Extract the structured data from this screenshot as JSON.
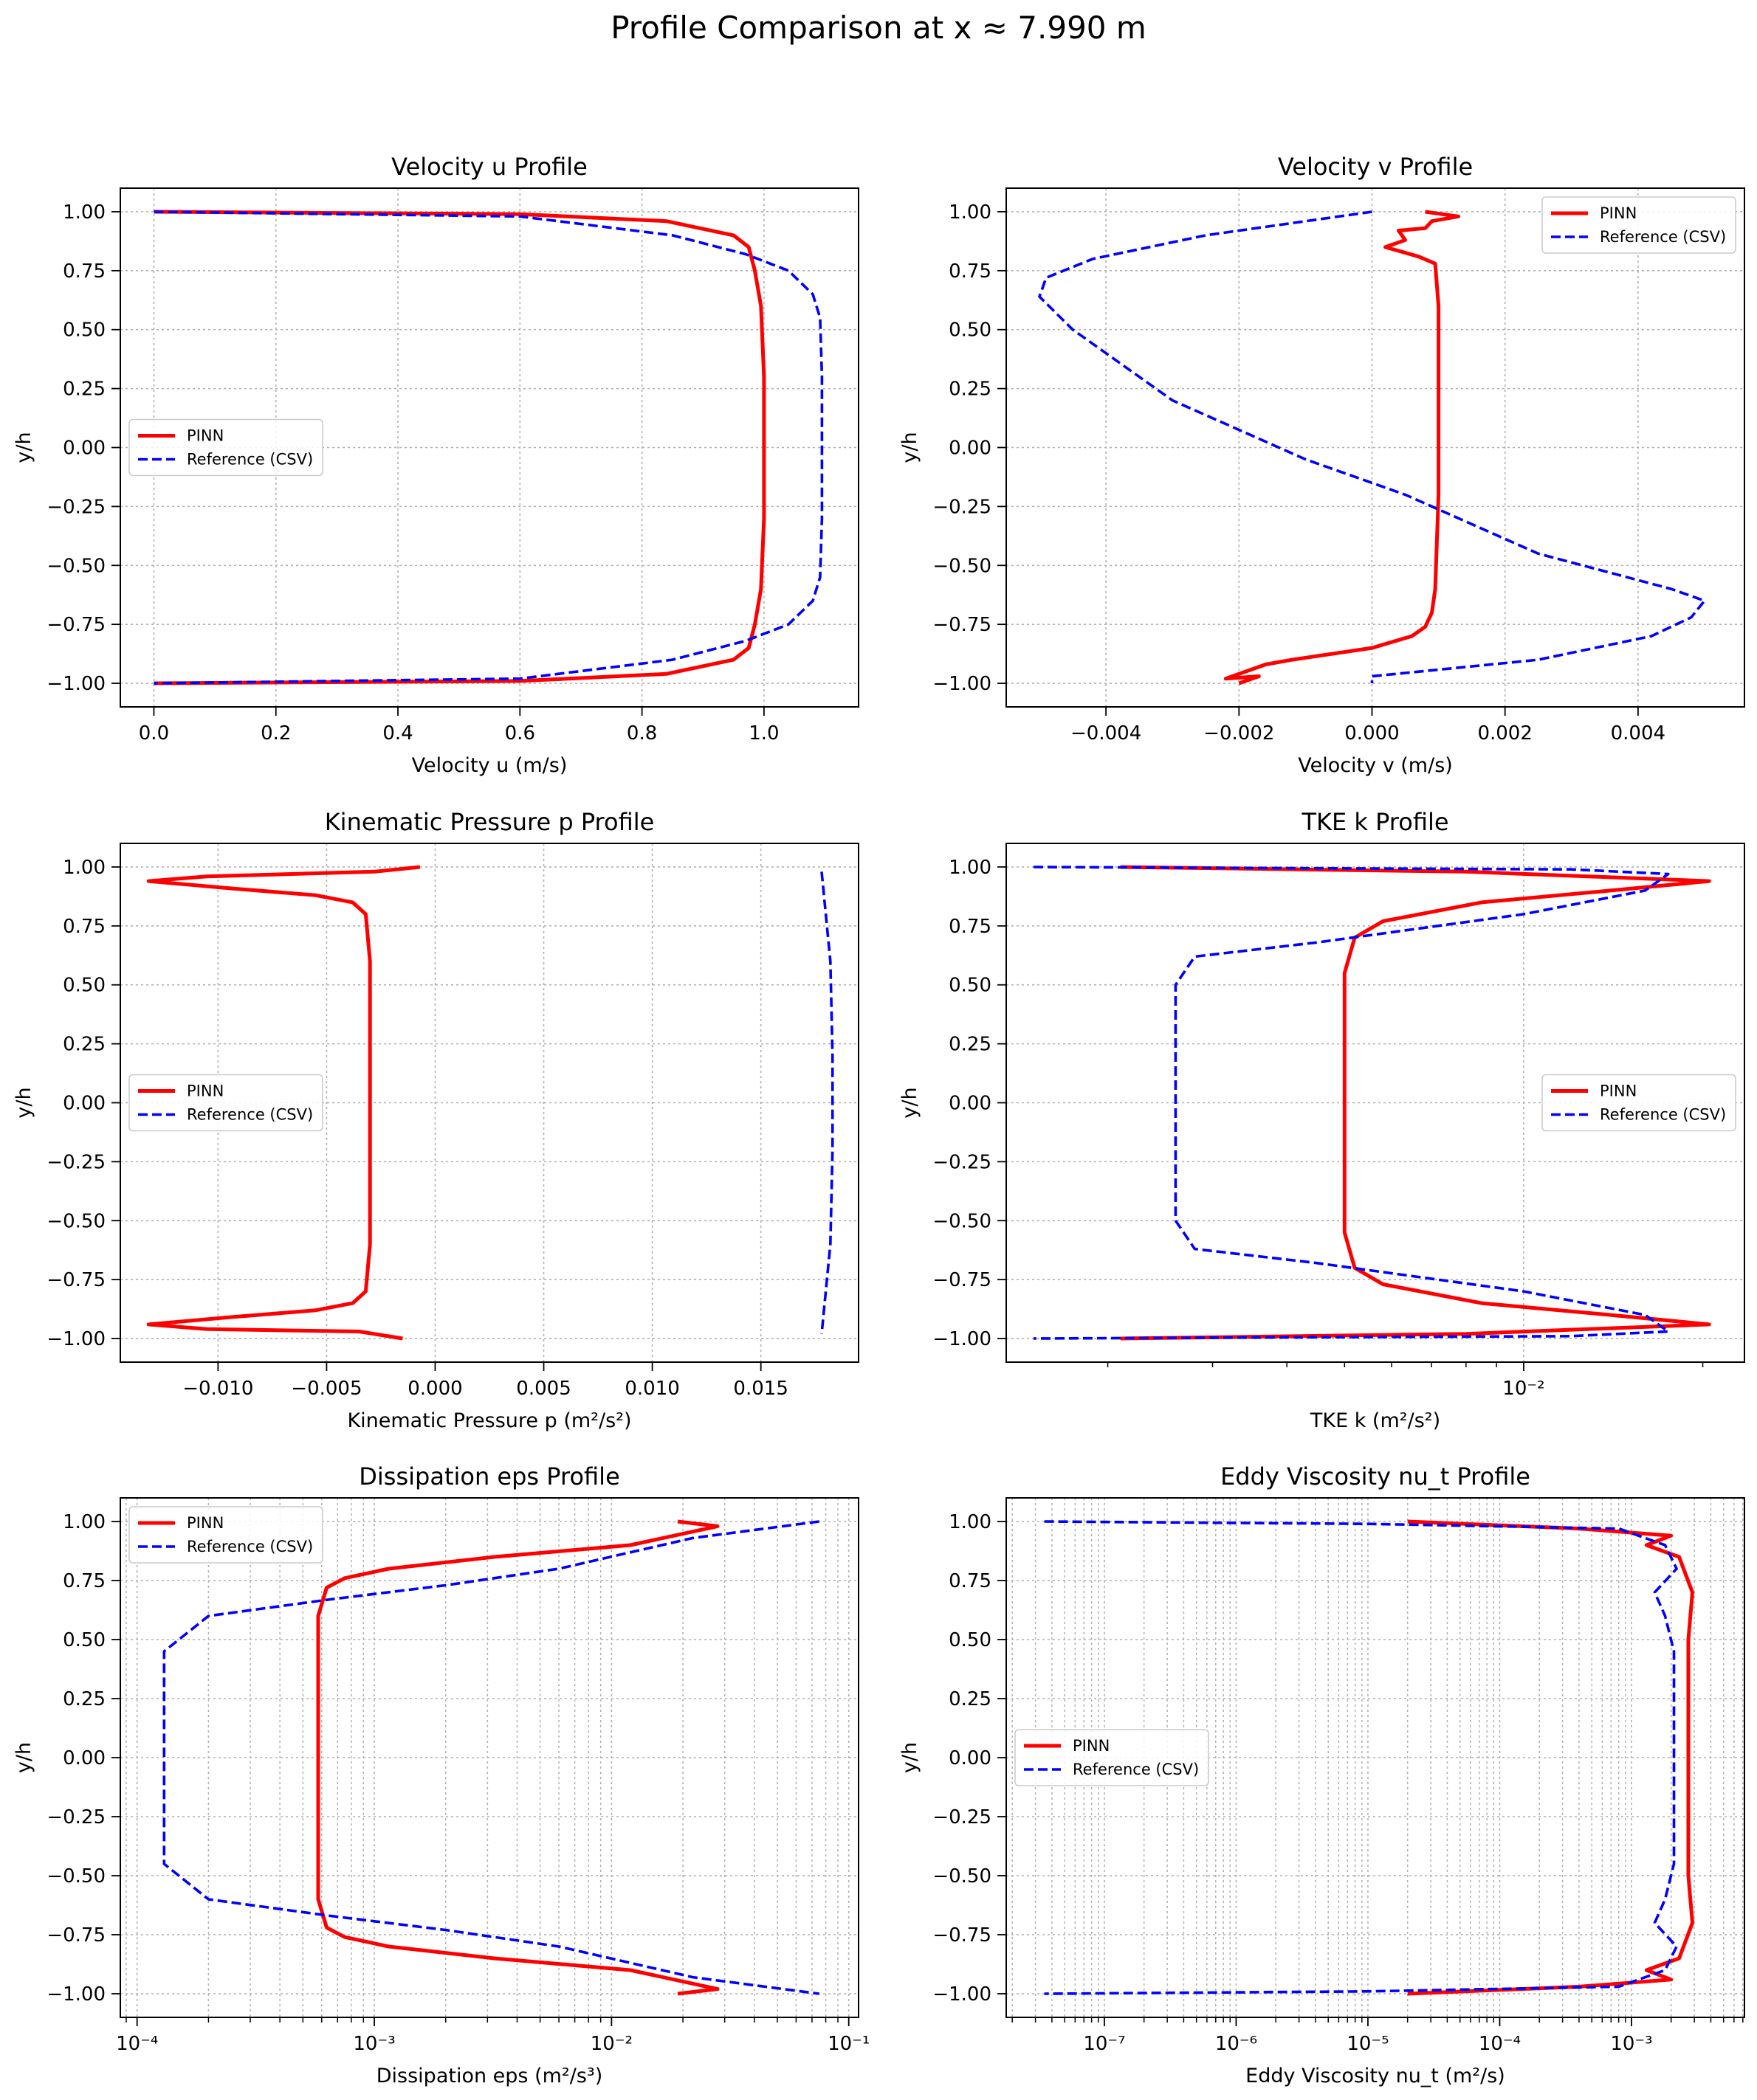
{
  "figure": {
    "suptitle": "Profile Comparison at x ≈ 7.990 m"
  },
  "legend_labels": [
    "PINN",
    "Reference (CSV)"
  ],
  "colors": {
    "pinn": "#ff0000",
    "reference": "#0000ff",
    "grid": "#b0b0b0"
  },
  "chart_data": [
    {
      "id": "u",
      "type": "line",
      "title": "Velocity u Profile",
      "xlabel": "Velocity u (m/s)",
      "ylabel": "y/h",
      "xscale": "linear",
      "xlim": [
        -0.055,
        1.155
      ],
      "ylim": [
        -1.1,
        1.1
      ],
      "xticks": [
        0.0,
        0.2,
        0.4,
        0.6,
        0.8,
        1.0
      ],
      "xticklabels": [
        "0.0",
        "0.2",
        "0.4",
        "0.6",
        "0.8",
        "1.0"
      ],
      "legend_loc": "center-left",
      "grid": true,
      "series": [
        {
          "name": "PINN",
          "style": "solid",
          "x": [
            0.0,
            0.6,
            0.84,
            0.95,
            0.975,
            0.985,
            0.995,
            1.0,
            1.0,
            0.995,
            0.985,
            0.975,
            0.95,
            0.84,
            0.6,
            0.0
          ],
          "y": [
            1.0,
            0.99,
            0.96,
            0.9,
            0.85,
            0.75,
            0.6,
            0.3,
            -0.3,
            -0.6,
            -0.75,
            -0.85,
            -0.9,
            -0.96,
            -0.99,
            -1.0
          ]
        },
        {
          "name": "Reference (CSV)",
          "style": "dashed",
          "x": [
            0.0,
            0.6,
            0.85,
            0.97,
            1.04,
            1.08,
            1.092,
            1.095,
            1.095,
            1.092,
            1.08,
            1.04,
            0.97,
            0.85,
            0.6,
            0.0
          ],
          "y": [
            1.0,
            0.98,
            0.9,
            0.82,
            0.75,
            0.65,
            0.55,
            0.3,
            -0.3,
            -0.55,
            -0.65,
            -0.75,
            -0.82,
            -0.9,
            -0.98,
            -1.0
          ]
        }
      ]
    },
    {
      "id": "v",
      "type": "line",
      "title": "Velocity v Profile",
      "xlabel": "Velocity v (m/s)",
      "ylabel": "y/h",
      "xscale": "linear",
      "xlim": [
        -0.0055,
        0.0056
      ],
      "ylim": [
        -1.1,
        1.1
      ],
      "xticks": [
        -0.004,
        -0.002,
        0.0,
        0.002,
        0.004
      ],
      "xticklabels": [
        "−0.004",
        "−0.002",
        "0.000",
        "0.002",
        "0.004"
      ],
      "legend_loc": "upper-right",
      "grid": true,
      "series": [
        {
          "name": "PINN",
          "style": "solid",
          "x": [
            0.0008,
            0.0013,
            0.0009,
            0.0008,
            0.0004,
            0.0005,
            0.0002,
            0.0007,
            0.00095,
            0.001,
            0.001,
            0.00095,
            0.0009,
            0.0008,
            0.0006,
            0.0,
            -0.0012,
            -0.0016,
            -0.0022,
            -0.0017,
            -0.002
          ],
          "y": [
            1.0,
            0.98,
            0.96,
            0.93,
            0.92,
            0.88,
            0.85,
            0.81,
            0.78,
            0.6,
            -0.2,
            -0.6,
            -0.7,
            -0.76,
            -0.8,
            -0.85,
            -0.9,
            -0.92,
            -0.98,
            -0.97,
            -1.0
          ]
        },
        {
          "name": "Reference (CSV)",
          "style": "dashed",
          "x": [
            0.0,
            -0.0025,
            -0.0042,
            -0.0049,
            -0.005,
            -0.0045,
            -0.003,
            -0.001,
            0.0005,
            0.0025,
            0.0045,
            0.005,
            0.0048,
            0.0042,
            0.0025,
            0.0,
            0.0
          ],
          "y": [
            1.0,
            0.9,
            0.8,
            0.72,
            0.64,
            0.5,
            0.2,
            -0.05,
            -0.2,
            -0.45,
            -0.6,
            -0.65,
            -0.72,
            -0.8,
            -0.9,
            -0.97,
            -1.0
          ]
        }
      ]
    },
    {
      "id": "p",
      "type": "line",
      "title": "Kinematic Pressure p Profile",
      "xlabel": "Kinematic Pressure p (m²/s²)",
      "ylabel": "y/h",
      "xscale": "linear",
      "xlim": [
        -0.0145,
        0.0195
      ],
      "ylim": [
        -1.1,
        1.1
      ],
      "xticks": [
        -0.01,
        -0.005,
        0.0,
        0.005,
        0.01,
        0.015
      ],
      "xticklabels": [
        "−0.010",
        "−0.005",
        "0.000",
        "0.005",
        "0.010",
        "0.015"
      ],
      "legend_loc": "center-left",
      "grid": true,
      "series": [
        {
          "name": "PINN",
          "style": "solid",
          "x": [
            -0.0007,
            -0.0028,
            -0.0105,
            -0.0132,
            -0.0095,
            -0.0055,
            -0.0038,
            -0.0032,
            -0.003,
            -0.003,
            -0.0032,
            -0.0038,
            -0.0055,
            -0.0095,
            -0.0132,
            -0.0105,
            -0.0035,
            -0.0015
          ],
          "y": [
            1.0,
            0.98,
            0.96,
            0.94,
            0.91,
            0.88,
            0.85,
            0.8,
            0.6,
            -0.6,
            -0.8,
            -0.85,
            -0.88,
            -0.91,
            -0.94,
            -0.96,
            -0.97,
            -1.0
          ]
        },
        {
          "name": "Reference (CSV)",
          "style": "dashed",
          "x": [
            0.0178,
            0.0182,
            0.0183,
            0.0183,
            0.0182,
            0.0178
          ],
          "y": [
            0.98,
            0.6,
            0.2,
            -0.2,
            -0.6,
            -0.98
          ]
        }
      ]
    },
    {
      "id": "k",
      "type": "line",
      "title": "TKE k Profile",
      "xlabel": "TKE k (m²/s²)",
      "ylabel": "y/h",
      "xscale": "log",
      "xlim": [
        0.00135,
        0.0235
      ],
      "ylim": [
        -1.1,
        1.1
      ],
      "xticks": [
        0.01
      ],
      "xticklabels": [
        "10⁻²"
      ],
      "legend_loc": "center-right",
      "grid": true,
      "series": [
        {
          "name": "PINN",
          "style": "solid",
          "x": [
            0.0021,
            0.008,
            0.0205,
            0.014,
            0.0085,
            0.0058,
            0.0052,
            0.005,
            0.005,
            0.0052,
            0.0058,
            0.0085,
            0.014,
            0.0205,
            0.008,
            0.0021
          ],
          "y": [
            1.0,
            0.98,
            0.94,
            0.9,
            0.85,
            0.77,
            0.7,
            0.55,
            -0.55,
            -0.7,
            -0.77,
            -0.85,
            -0.9,
            -0.94,
            -0.98,
            -1.0
          ]
        },
        {
          "name": "Reference (CSV)",
          "style": "dashed",
          "x": [
            0.0015,
            0.012,
            0.0175,
            0.016,
            0.01,
            0.0045,
            0.0028,
            0.0026,
            0.0026,
            0.0028,
            0.0045,
            0.01,
            0.016,
            0.0175,
            0.012,
            0.0015
          ],
          "y": [
            1.0,
            0.99,
            0.97,
            0.9,
            0.8,
            0.68,
            0.62,
            0.5,
            -0.5,
            -0.62,
            -0.68,
            -0.8,
            -0.9,
            -0.97,
            -0.99,
            -1.0
          ]
        }
      ]
    },
    {
      "id": "eps",
      "type": "line",
      "title": "Dissipation eps Profile",
      "xlabel": "Dissipation eps (m²/s³)",
      "ylabel": "y/h",
      "xscale": "log",
      "xlim": [
        8.5e-05,
        0.11
      ],
      "ylim": [
        -1.1,
        1.1
      ],
      "xticks": [
        0.0001,
        0.001,
        0.01,
        0.1
      ],
      "xticklabels": [
        "10⁻⁴",
        "10⁻³",
        "10⁻²",
        "10⁻¹"
      ],
      "legend_loc": "upper-left",
      "grid": true,
      "minor_grid": true,
      "series": [
        {
          "name": "PINN",
          "style": "solid",
          "x": [
            0.019,
            0.028,
            0.012,
            0.0032,
            0.00115,
            0.00075,
            0.00063,
            0.00058,
            0.00058,
            0.00063,
            0.00075,
            0.00115,
            0.0032,
            0.012,
            0.028,
            0.019
          ],
          "y": [
            1.0,
            0.98,
            0.9,
            0.85,
            0.8,
            0.76,
            0.72,
            0.6,
            -0.6,
            -0.72,
            -0.76,
            -0.8,
            -0.85,
            -0.9,
            -0.98,
            -1.0
          ]
        },
        {
          "name": "Reference (CSV)",
          "style": "dashed",
          "x": [
            0.075,
            0.022,
            0.006,
            0.002,
            0.00065,
            0.0002,
            0.00013,
            0.00013,
            0.0002,
            0.00065,
            0.002,
            0.006,
            0.022,
            0.075
          ],
          "y": [
            1.0,
            0.93,
            0.8,
            0.73,
            0.67,
            0.6,
            0.45,
            -0.45,
            -0.6,
            -0.67,
            -0.73,
            -0.8,
            -0.93,
            -1.0
          ]
        }
      ]
    },
    {
      "id": "nut",
      "type": "line",
      "title": "Eddy Viscosity nu_t Profile",
      "xlabel": "Eddy Viscosity nu_t (m²/s)",
      "ylabel": "y/h",
      "xscale": "log",
      "xlim": [
        1.8e-08,
        0.0072
      ],
      "ylim": [
        -1.1,
        1.1
      ],
      "xticks": [
        1e-07,
        1e-06,
        1e-05,
        0.0001,
        0.001
      ],
      "xticklabels": [
        "10⁻⁷",
        "10⁻⁶",
        "10⁻⁵",
        "10⁻⁴",
        "10⁻³"
      ],
      "legend_loc": "center-left",
      "grid": true,
      "minor_grid": true,
      "series": [
        {
          "name": "PINN",
          "style": "solid",
          "x": [
            2e-05,
            0.0004,
            0.002,
            0.0013,
            0.0023,
            0.0029,
            0.0027,
            0.0027,
            0.0029,
            0.0023,
            0.0013,
            0.002,
            0.0004,
            2e-05
          ],
          "y": [
            1.0,
            0.97,
            0.94,
            0.9,
            0.85,
            0.7,
            0.5,
            -0.5,
            -0.7,
            -0.85,
            -0.9,
            -0.94,
            -0.97,
            -1.0
          ]
        },
        {
          "name": "Reference (CSV)",
          "style": "dashed",
          "x": [
            3.5e-08,
            1e-05,
            0.0008,
            0.0018,
            0.0022,
            0.0015,
            0.0018,
            0.0021,
            0.0021,
            0.0018,
            0.0015,
            0.0022,
            0.0018,
            0.0008,
            1e-05,
            3.5e-08
          ],
          "y": [
            1.0,
            0.99,
            0.97,
            0.9,
            0.8,
            0.7,
            0.6,
            0.45,
            -0.45,
            -0.6,
            -0.7,
            -0.8,
            -0.9,
            -0.97,
            -0.99,
            -1.0
          ]
        }
      ]
    }
  ]
}
